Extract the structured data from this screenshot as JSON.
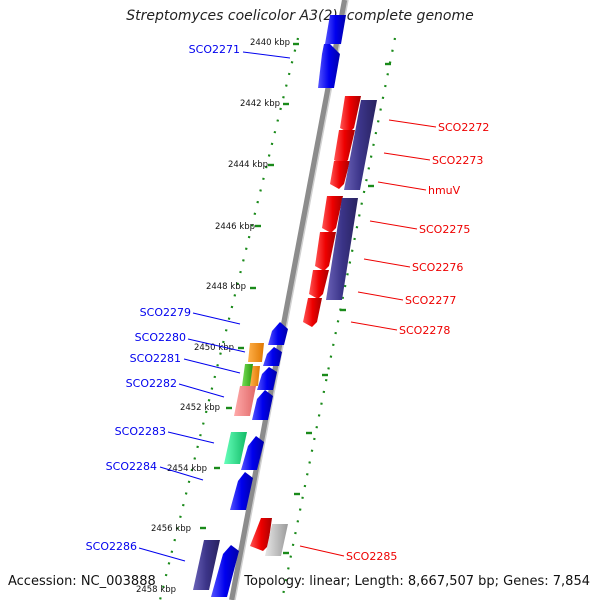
{
  "title": "Streptomyces coelicolor A3(2), complete genome",
  "accession": "Accession: NC_003888",
  "summary": "Topology: linear; Length: 8,667,507 bp; Genes: 7,854",
  "ruler_labels": [
    "2440 kbp",
    "2442 kbp",
    "2444 kbp",
    "2446 kbp",
    "2448 kbp",
    "2450 kbp",
    "2452 kbp",
    "2454 kbp",
    "2456 kbp",
    "2458 kbp"
  ],
  "forward_genes": [
    "SCO2271",
    "SCO2279",
    "SCO2280",
    "SCO2281",
    "SCO2282",
    "SCO2283",
    "SCO2284",
    "SCO2286"
  ],
  "reverse_genes": [
    "SCO2272",
    "SCO2273",
    "hmuV",
    "SCO2275",
    "SCO2276",
    "SCO2277",
    "SCO2278",
    "SCO2285"
  ],
  "colors": {
    "forward": "#0000ee",
    "reverse": "#ee0000",
    "purple": "#3b3488",
    "orange": "#ff8c00",
    "green": "#44bb22",
    "pink": "#f08080",
    "teal": "#22dd88",
    "grey": "#bdbdbd",
    "ruler": "#1a8a1a",
    "backbone": "#8c8c8c"
  }
}
